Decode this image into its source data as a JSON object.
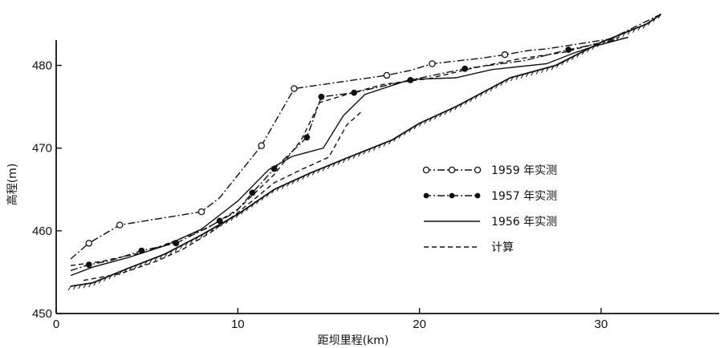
{
  "chart_data": {
    "type": "line",
    "xlabel": "距坝里程(km)",
    "ylabel": "高程(m)",
    "xlim": [
      0,
      36.5
    ],
    "ylim": [
      450,
      485
    ],
    "xticks": [
      0,
      10,
      20,
      30
    ],
    "yticks": [
      450,
      460,
      470,
      480
    ],
    "legend_position": "center-right",
    "series": [
      {
        "name": "1959 年实测",
        "style": "dash-dot",
        "marker": "open-circle",
        "points": [
          [
            0.8,
            456.6
          ],
          [
            1.8,
            458.5
          ],
          [
            3.5,
            460.7
          ],
          [
            8.0,
            462.3
          ],
          [
            9.0,
            464.0
          ],
          [
            11.3,
            470.3
          ],
          [
            13.1,
            477.2
          ],
          [
            18.2,
            478.8
          ],
          [
            19.5,
            479.4
          ],
          [
            20.7,
            480.2
          ],
          [
            23.5,
            480.9
          ],
          [
            24.7,
            481.3
          ],
          [
            26.0,
            481.8
          ],
          [
            27.0,
            482.0
          ],
          [
            30.5,
            483.2
          ],
          [
            33.3,
            486.2
          ]
        ],
        "marker_x": [
          1.8,
          3.5,
          8.0,
          11.3,
          13.1,
          18.2,
          20.7,
          24.7
        ]
      },
      {
        "name": "1957 年实测",
        "style": "dash-dot",
        "marker": "filled-circle",
        "points": [
          [
            0.8,
            455.2
          ],
          [
            1.8,
            455.9
          ],
          [
            3.0,
            456.4
          ],
          [
            4.7,
            457.6
          ],
          [
            6.6,
            458.5
          ],
          [
            8.5,
            460.6
          ],
          [
            9.9,
            462.3
          ],
          [
            10.8,
            464.6
          ],
          [
            12.0,
            467.5
          ],
          [
            13.8,
            471.3
          ],
          [
            14.6,
            476.2
          ],
          [
            16.4,
            476.7
          ],
          [
            19.0,
            478.0
          ],
          [
            22.5,
            479.6
          ],
          [
            25.8,
            480.6
          ],
          [
            28.2,
            481.9
          ],
          [
            31.5,
            483.4
          ]
        ],
        "marker_x": [
          1.8,
          4.7,
          6.6,
          9.0,
          10.8,
          12.0,
          13.8,
          14.6,
          16.4,
          19.5,
          22.5,
          28.2
        ]
      },
      {
        "name": "1956 年实测",
        "style": "solid",
        "points": [
          [
            0.8,
            454.6
          ],
          [
            2.0,
            455.6
          ],
          [
            4.0,
            456.8
          ],
          [
            6.0,
            458.2
          ],
          [
            8.0,
            460.2
          ],
          [
            10.0,
            463.6
          ],
          [
            11.7,
            467.4
          ],
          [
            13.0,
            469.0
          ],
          [
            14.7,
            470.0
          ],
          [
            15.8,
            473.9
          ],
          [
            17.0,
            476.5
          ],
          [
            19.5,
            478.3
          ],
          [
            22.0,
            478.5
          ],
          [
            24.0,
            479.5
          ],
          [
            27.0,
            480.2
          ],
          [
            28.5,
            481.5
          ],
          [
            29.6,
            482.3
          ],
          [
            31.5,
            483.4
          ]
        ]
      },
      {
        "name": "计算",
        "style": "dashed",
        "points": [
          [
            0.8,
            455.8
          ],
          [
            2.5,
            456.3
          ],
          [
            5.0,
            457.5
          ],
          [
            8.3,
            460.3
          ],
          [
            10.0,
            462.6
          ],
          [
            12.0,
            466.8
          ],
          [
            13.5,
            471.0
          ],
          [
            14.5,
            475.5
          ],
          [
            16.0,
            476.5
          ],
          [
            18.0,
            477.7
          ],
          [
            20.5,
            478.4
          ],
          [
            23.0,
            479.7
          ],
          [
            25.5,
            480.8
          ],
          [
            28.0,
            481.6
          ],
          [
            31.0,
            483.4
          ]
        ]
      },
      {
        "name": "",
        "style": "dashed",
        "points": [
          [
            1.5,
            454.0
          ],
          [
            3.5,
            454.8
          ],
          [
            5.5,
            456.3
          ],
          [
            7.0,
            457.8
          ],
          [
            8.5,
            459.8
          ],
          [
            10.0,
            462.2
          ],
          [
            12.0,
            465.8
          ],
          [
            13.5,
            467.4
          ],
          [
            15.0,
            468.9
          ],
          [
            16.0,
            472.8
          ],
          [
            16.8,
            474.4
          ]
        ]
      },
      {
        "name": "",
        "style": "hatched-bed",
        "points": [
          [
            0.8,
            453.3
          ],
          [
            2.0,
            453.7
          ],
          [
            4.0,
            455.5
          ],
          [
            6.0,
            457.2
          ],
          [
            8.0,
            459.5
          ],
          [
            10.0,
            462.0
          ],
          [
            12.0,
            465.0
          ],
          [
            14.0,
            467.0
          ],
          [
            16.0,
            468.8
          ],
          [
            18.5,
            471.0
          ],
          [
            20.0,
            473.0
          ],
          [
            22.0,
            475.0
          ],
          [
            25.0,
            478.5
          ],
          [
            27.5,
            480.0
          ],
          [
            30.0,
            482.8
          ],
          [
            32.5,
            485.0
          ],
          [
            33.3,
            486.2
          ]
        ]
      }
    ]
  }
}
